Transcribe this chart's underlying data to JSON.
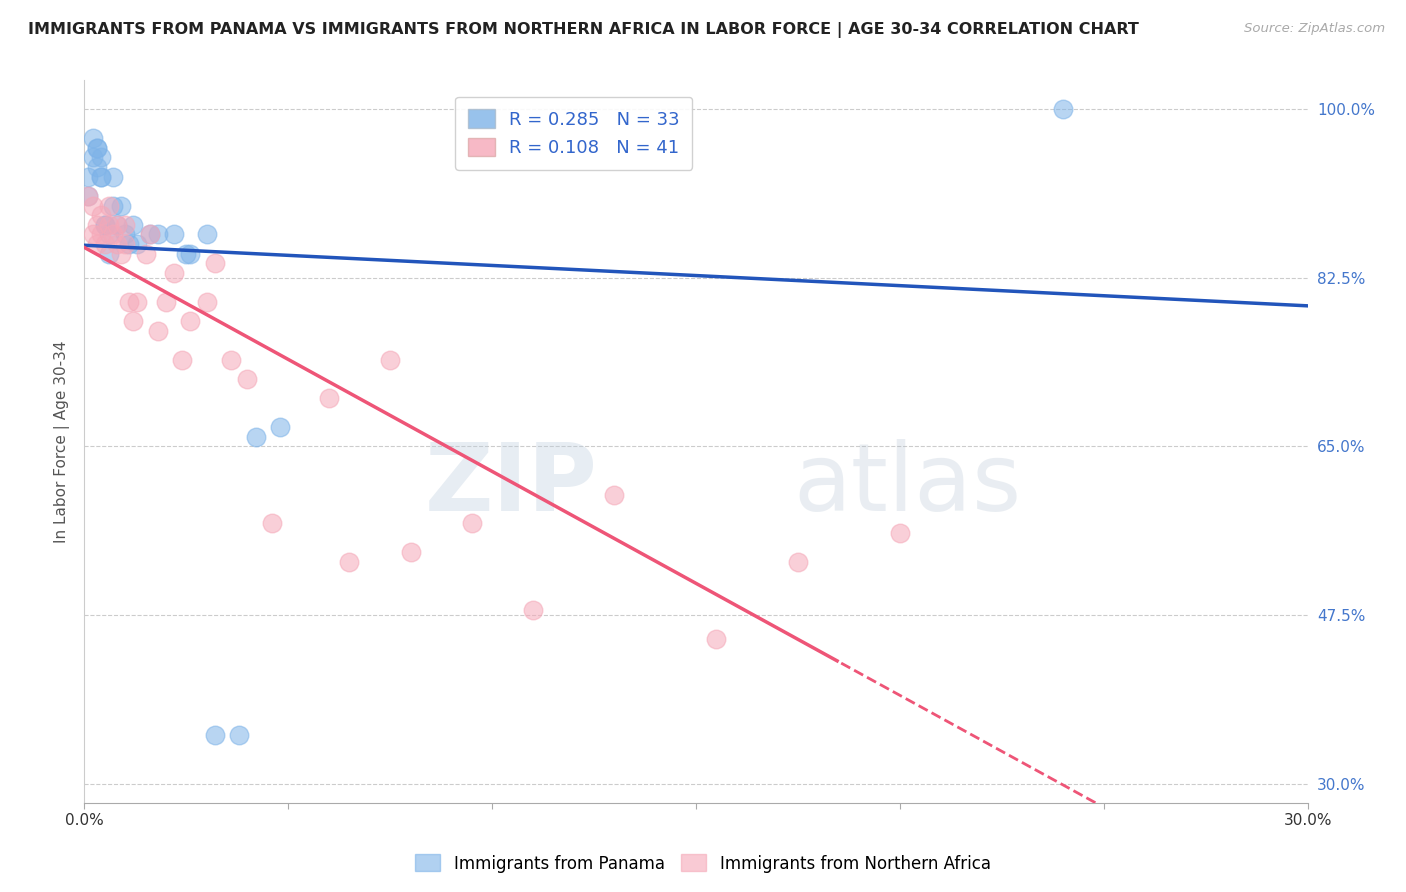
{
  "title": "IMMIGRANTS FROM PANAMA VS IMMIGRANTS FROM NORTHERN AFRICA IN LABOR FORCE | AGE 30-34 CORRELATION CHART",
  "source": "Source: ZipAtlas.com",
  "ylabel": "In Labor Force | Age 30-34",
  "xlim": [
    0.0,
    0.3
  ],
  "ylim": [
    0.28,
    1.03
  ],
  "xticks": [
    0.0,
    0.05,
    0.1,
    0.15,
    0.2,
    0.25,
    0.3
  ],
  "xticklabels": [
    "0.0%",
    "",
    "",
    "",
    "",
    "",
    "30.0%"
  ],
  "yticks": [
    0.3,
    0.475,
    0.65,
    0.825,
    1.0
  ],
  "yticklabels": [
    "30.0%",
    "47.5%",
    "65.0%",
    "82.5%",
    "100.0%"
  ],
  "panama_color": "#7EB3E8",
  "northern_africa_color": "#F5A8B8",
  "panama_R": 0.285,
  "panama_N": 33,
  "northern_africa_R": 0.108,
  "northern_africa_N": 41,
  "regression_blue_color": "#2255BB",
  "regression_pink_color": "#EE5577",
  "watermark_zip": "ZIP",
  "watermark_atlas": "atlas",
  "legend_label_panama": "Immigrants from Panama",
  "legend_label_africa": "Immigrants from Northern Africa",
  "panama_x": [
    0.001,
    0.001,
    0.002,
    0.002,
    0.003,
    0.003,
    0.003,
    0.004,
    0.004,
    0.004,
    0.005,
    0.005,
    0.006,
    0.006,
    0.007,
    0.007,
    0.008,
    0.009,
    0.01,
    0.011,
    0.012,
    0.013,
    0.016,
    0.018,
    0.022,
    0.025,
    0.026,
    0.03,
    0.032,
    0.038,
    0.042,
    0.048,
    0.24
  ],
  "panama_y": [
    0.91,
    0.93,
    0.95,
    0.97,
    0.94,
    0.96,
    0.96,
    0.93,
    0.95,
    0.93,
    0.88,
    0.88,
    0.85,
    0.87,
    0.9,
    0.93,
    0.88,
    0.9,
    0.87,
    0.86,
    0.88,
    0.86,
    0.87,
    0.87,
    0.87,
    0.85,
    0.85,
    0.87,
    0.35,
    0.35,
    0.66,
    0.67,
    1.0
  ],
  "africa_x": [
    0.001,
    0.002,
    0.002,
    0.003,
    0.003,
    0.004,
    0.004,
    0.005,
    0.006,
    0.006,
    0.007,
    0.008,
    0.008,
    0.009,
    0.01,
    0.01,
    0.011,
    0.012,
    0.013,
    0.015,
    0.016,
    0.018,
    0.02,
    0.022,
    0.024,
    0.026,
    0.03,
    0.032,
    0.036,
    0.04,
    0.046,
    0.06,
    0.065,
    0.075,
    0.08,
    0.095,
    0.11,
    0.13,
    0.155,
    0.175,
    0.2
  ],
  "africa_y": [
    0.91,
    0.87,
    0.9,
    0.86,
    0.88,
    0.87,
    0.89,
    0.86,
    0.88,
    0.9,
    0.87,
    0.88,
    0.86,
    0.85,
    0.88,
    0.86,
    0.8,
    0.78,
    0.8,
    0.85,
    0.87,
    0.77,
    0.8,
    0.83,
    0.74,
    0.78,
    0.8,
    0.84,
    0.74,
    0.72,
    0.57,
    0.7,
    0.53,
    0.74,
    0.54,
    0.57,
    0.48,
    0.6,
    0.45,
    0.53,
    0.56
  ]
}
